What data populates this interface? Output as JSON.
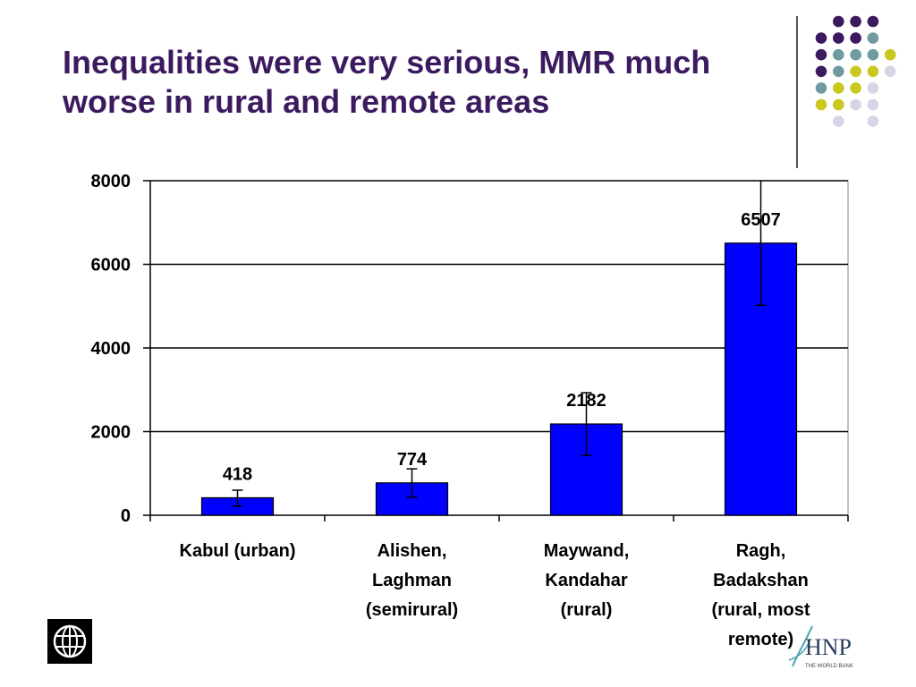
{
  "slide": {
    "title_line1": "Inequalities were very serious, MMR much",
    "title_line2": "worse in rural and remote areas"
  },
  "colors": {
    "title": "#3b1a5f",
    "bar": "#0000ff",
    "dot_purple": "#3b1a5f",
    "dot_teal": "#6e9aa0",
    "dot_yellow": "#c8c81e",
    "dot_lavender": "#d5d5e6"
  },
  "chart_data": {
    "type": "bar",
    "categories": [
      [
        "Kabul (urban)"
      ],
      [
        "Alishen,",
        "Laghman",
        "(semirural)"
      ],
      [
        "Maywand,",
        "Kandahar",
        "(rural)"
      ],
      [
        "Ragh,",
        "Badakshan",
        "(rural, most",
        "remote)"
      ]
    ],
    "values": [
      418,
      774,
      2182,
      6507
    ],
    "data_labels": [
      "418",
      "774",
      "2182",
      "6507"
    ],
    "error_bars": [
      {
        "low": 220,
        "high": 600
      },
      {
        "low": 430,
        "high": 1110
      },
      {
        "low": 1430,
        "high": 2930
      },
      {
        "low": 5020,
        "high": 8000
      }
    ],
    "yticks": [
      0,
      2000,
      4000,
      6000,
      8000
    ],
    "ylim": [
      0,
      8000
    ],
    "grid": true,
    "title": "",
    "xlabel": "",
    "ylabel": ""
  },
  "logos": {
    "left": "world-bank-globe-icon",
    "right_text": "HNP",
    "right_subtext": "THE WORLD BANK"
  }
}
